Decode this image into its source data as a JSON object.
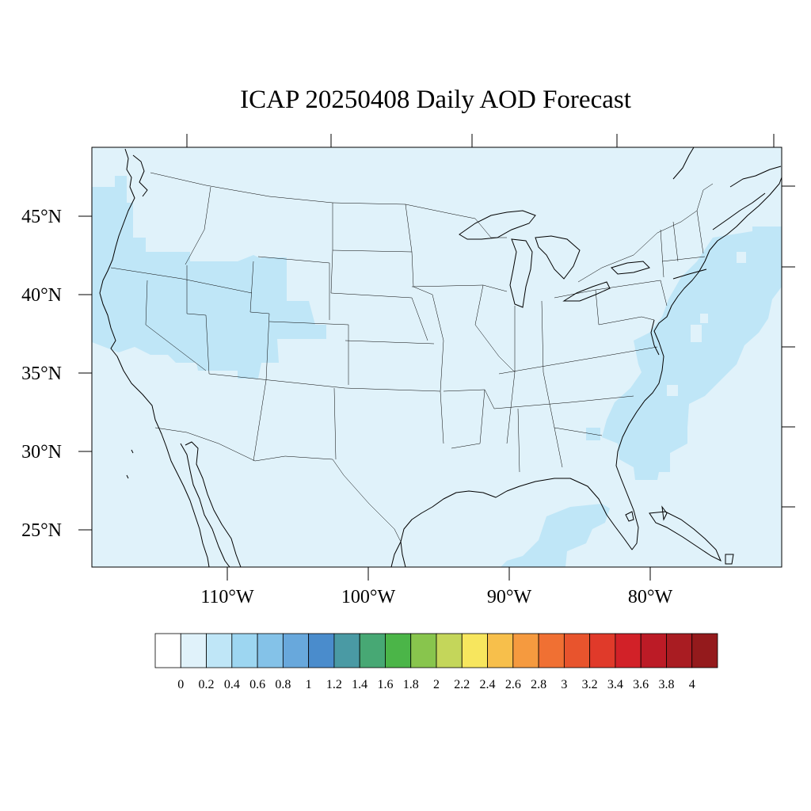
{
  "title": "ICAP 20250408 Daily AOD Forecast",
  "map": {
    "lat_labels": [
      "45°N",
      "40°N",
      "35°N",
      "30°N",
      "25°N"
    ],
    "lon_labels": [
      "110°W",
      "100°W",
      "90°W",
      "80°W"
    ],
    "background_color": "#e0f2fa",
    "aod_regions": [
      {
        "name": "west-coast-plume",
        "aod_range": "0.2-0.4",
        "color": "#bfe6f7"
      },
      {
        "name": "great-basin-plume",
        "aod_range": "0.2-0.4",
        "color": "#bfe6f7"
      },
      {
        "name": "atlantic-plume",
        "aod_range": "0.2-0.4",
        "color": "#bfe6f7"
      },
      {
        "name": "gulf-plume",
        "aod_range": "0.2-0.4",
        "color": "#bfe6f7"
      }
    ]
  },
  "colorbar": {
    "labels": [
      "0",
      "0.2",
      "0.4",
      "0.6",
      "0.8",
      "1",
      "1.2",
      "1.4",
      "1.6",
      "1.8",
      "2",
      "2.2",
      "2.4",
      "2.6",
      "2.8",
      "3",
      "3.2",
      "3.4",
      "3.6",
      "3.8",
      "4"
    ],
    "colors": [
      "#ffffff",
      "#e0f2fa",
      "#bfe6f7",
      "#9dd6f1",
      "#84c2e8",
      "#68a8dc",
      "#4a8ccc",
      "#4a9aa4",
      "#47a874",
      "#4bb548",
      "#88c54d",
      "#c4d65a",
      "#f7e65e",
      "#f7bf4b",
      "#f59a3f",
      "#f07033",
      "#e8542d",
      "#e03a2a",
      "#d22128",
      "#bc1b26",
      "#a91c22",
      "#941a1c"
    ]
  }
}
